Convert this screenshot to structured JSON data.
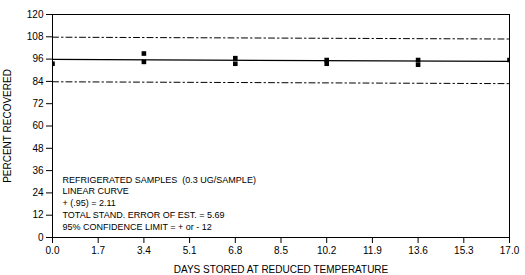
{
  "chart_data": {
    "type": "line",
    "xlabel": "DAYS STORED AT REDUCED TEMPERATURE",
    "ylabel": "PERCENT RECOVERED",
    "xlim": [
      0.0,
      17.0
    ],
    "ylim": [
      0,
      120
    ],
    "xticks": [
      {
        "value": 0.0,
        "label": "0.0"
      },
      1.7,
      3.4,
      5.1,
      6.8,
      8.5,
      10.2,
      11.9,
      13.6,
      15.3,
      {
        "value": 17.0,
        "label": "17.0"
      }
    ],
    "yticks": [
      0,
      12,
      24,
      36,
      48,
      60,
      72,
      84,
      96,
      108,
      120
    ],
    "grid": false,
    "series": [
      {
        "type": "line",
        "line_style": "solid",
        "color": "#000000",
        "x": [
          0.0,
          17.0
        ],
        "values": [
          95.8,
          94.8
        ]
      },
      {
        "type": "line",
        "line_style": "dashdot",
        "color": "#000000",
        "x": [
          0.0,
          17.0
        ],
        "values": [
          107.8,
          106.8
        ]
      },
      {
        "type": "line",
        "line_style": "dashdot",
        "color": "#000000",
        "x": [
          0.0,
          17.0
        ],
        "values": [
          83.8,
          82.8
        ]
      },
      {
        "type": "scatter",
        "marker": "square",
        "color": "#000000",
        "x": [
          0.0,
          3.4,
          3.4,
          6.8,
          6.8,
          10.2,
          10.2,
          13.6,
          13.6,
          17.0
        ],
        "values": [
          93.5,
          99.0,
          94.5,
          96.5,
          93.5,
          95.5,
          93.5,
          95.5,
          93.0,
          95.5
        ]
      }
    ],
    "annotations": [
      "REFRIGERATED SAMPLES  (0.3 UG/SAMPLE)",
      "LINEAR CURVE",
      "+ (.95) = 2.11",
      "TOTAL STAND. ERROR OF EST. = 5.69",
      "95% CONFIDENCE LIMIT = + or - 12"
    ]
  }
}
